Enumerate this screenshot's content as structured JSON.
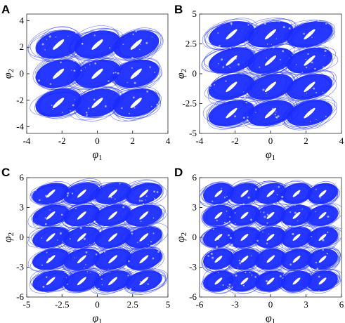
{
  "chart_data": [
    {
      "type": "scatter",
      "panel": "A",
      "xlabel": "φ1",
      "ylabel": "φ2",
      "xlim": [
        -4,
        4
      ],
      "ylim": [
        -4.5,
        4.5
      ],
      "xticks": [
        -4,
        -2,
        0,
        2,
        4
      ],
      "yticks": [
        -4,
        -2,
        0,
        2,
        4
      ],
      "xtick_labels": [
        "-4",
        "-2",
        "0",
        "2",
        "4"
      ],
      "ytick_labels": [
        "-4",
        "-2",
        "0",
        "2",
        "4"
      ],
      "attractor_cols": [
        -2.2,
        0,
        2.2
      ],
      "attractor_rows": [
        -2.2,
        0,
        2.2
      ],
      "series_color": "#1a2cff"
    },
    {
      "type": "scatter",
      "panel": "B",
      "xlabel": "φ1",
      "ylabel": "φ2",
      "xlim": [
        -4,
        4
      ],
      "ylim": [
        -5,
        5
      ],
      "xticks": [
        -4,
        -2,
        0,
        2,
        4
      ],
      "yticks": [
        -5,
        -2.5,
        0,
        2.5,
        5
      ],
      "xtick_labels": [
        "-4",
        "-2",
        "0",
        "2",
        "4"
      ],
      "ytick_labels": [
        "-5",
        "-2.5",
        "0",
        "2.5",
        "5"
      ],
      "attractor_cols": [
        -2.2,
        0,
        2.2
      ],
      "attractor_rows": [
        -3.3,
        -1.1,
        1.1,
        3.3
      ],
      "series_color": "#1a2cff"
    },
    {
      "type": "scatter",
      "panel": "C",
      "xlabel": "φ1",
      "ylabel": "φ2",
      "xlim": [
        -5,
        5
      ],
      "ylim": [
        -6,
        6
      ],
      "xticks": [
        -5,
        -2.5,
        0,
        2.5,
        5
      ],
      "yticks": [
        -6,
        -3,
        0,
        3,
        6
      ],
      "xtick_labels": [
        "-5",
        "-2.5",
        "0",
        "2.5",
        "5"
      ],
      "ytick_labels": [
        "-6",
        "-3",
        "0",
        "3",
        "6"
      ],
      "attractor_cols": [
        -3.3,
        -1.1,
        1.1,
        3.3
      ],
      "attractor_rows": [
        -4.4,
        -2.2,
        0,
        2.2,
        4.4
      ],
      "series_color": "#1a2cff"
    },
    {
      "type": "scatter",
      "panel": "D",
      "xlabel": "φ1",
      "ylabel": "φ2",
      "xlim": [
        -6,
        6
      ],
      "ylim": [
        -6,
        6
      ],
      "xticks": [
        -6,
        -3,
        0,
        3,
        6
      ],
      "yticks": [
        -6,
        -3,
        0,
        3,
        6
      ],
      "xtick_labels": [
        "-6",
        "-3",
        "0",
        "3",
        "6"
      ],
      "ytick_labels": [
        "-6",
        "-3",
        "0",
        "3",
        "6"
      ],
      "attractor_cols": [
        -4.4,
        -2.2,
        0,
        2.2,
        4.4
      ],
      "attractor_rows": [
        -4.4,
        -2.2,
        0,
        2.2,
        4.4
      ],
      "series_color": "#1a2cff"
    }
  ]
}
